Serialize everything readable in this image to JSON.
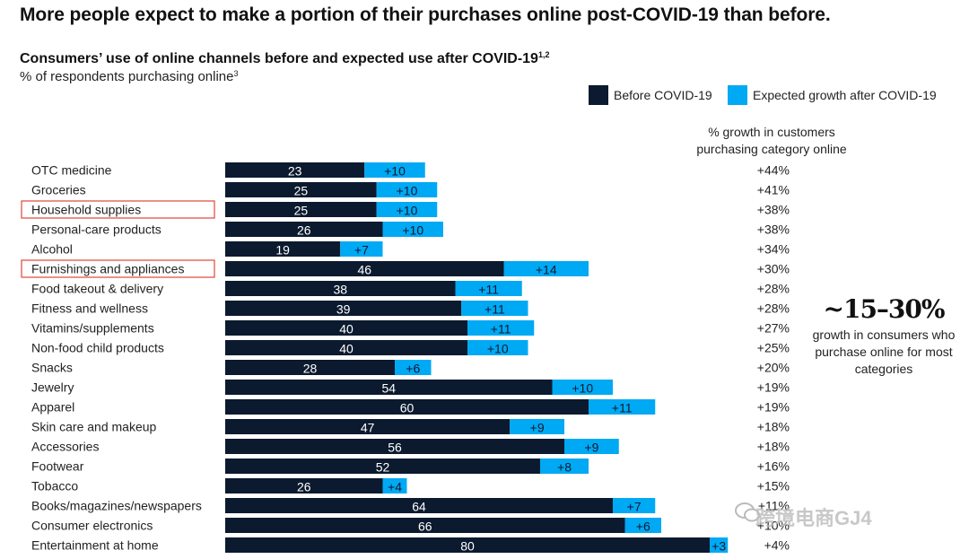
{
  "headline": "More people expect to make a portion of their purchases online post-COVID-19 than before.",
  "title_main": "Consumers’ use of online channels before and expected use after COVID-19",
  "title_sup": "1,2",
  "subtitle_main": "% of respondents purchasing online",
  "subtitle_sup": "3",
  "legend": [
    {
      "label": "Before COVID-19",
      "color": "#0b1a2e"
    },
    {
      "label": "Expected growth after COVID-19",
      "color": "#00a9f4"
    }
  ],
  "growth_header": "% growth in customers purchasing category online",
  "callout": {
    "big": "~15–30%",
    "text": "growth in consumers who purchase online for most categories"
  },
  "watermark": "跨境电商GJ4",
  "highlighted_categories": [
    "Household supplies",
    "Furnishings and appliances"
  ],
  "chart_data": {
    "type": "bar",
    "orientation": "horizontal",
    "stacked": true,
    "categories": [
      "OTC medicine",
      "Groceries",
      "Household supplies",
      "Personal-care products",
      "Alcohol",
      "Furnishings and appliances",
      "Food takeout & delivery",
      "Fitness and wellness",
      "Vitamins/supplements",
      "Non-food child products",
      "Snacks",
      "Jewelry",
      "Apparel",
      "Skin care and makeup",
      "Accessories",
      "Footwear",
      "Tobacco",
      "Books/magazines/newspapers",
      "Consumer electronics",
      "Entertainment at home"
    ],
    "series": [
      {
        "name": "Before COVID-19",
        "color": "#0b1a2e",
        "values": [
          23,
          25,
          25,
          26,
          19,
          46,
          38,
          39,
          40,
          40,
          28,
          54,
          60,
          47,
          56,
          52,
          26,
          64,
          66,
          80
        ]
      },
      {
        "name": "Expected growth after COVID-19",
        "color": "#00a9f4",
        "values": [
          10,
          10,
          10,
          10,
          7,
          14,
          11,
          11,
          11,
          10,
          6,
          10,
          11,
          9,
          9,
          8,
          4,
          7,
          6,
          3
        ]
      }
    ],
    "growth_pct_labels": [
      "+44%",
      "+41%",
      "+38%",
      "+38%",
      "+34%",
      "+30%",
      "+28%",
      "+28%",
      "+27%",
      "+25%",
      "+20%",
      "+19%",
      "+19%",
      "+18%",
      "+18%",
      "+16%",
      "+15%",
      "+11%",
      "+10%",
      "+4%"
    ],
    "title": "Consumers’ use of online channels before and expected use after COVID-19",
    "xlabel": "",
    "ylabel": "% of respondents purchasing online",
    "xlim": [
      0,
      80
    ],
    "grid": false,
    "legend_position": "top-right"
  }
}
